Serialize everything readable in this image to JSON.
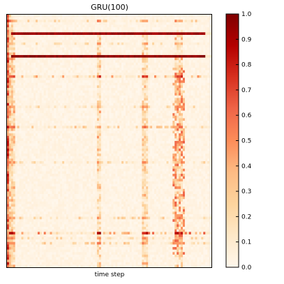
{
  "chart_data": {
    "type": "heatmap",
    "title": "GRU(100)",
    "xlabel": "time step",
    "ylabel": "",
    "rows": 100,
    "cols": 100,
    "x_ticks_shown": false,
    "y_ticks_shown": false,
    "colormap": "OrRd",
    "color_stops": [
      "#fff7ec",
      "#fee8c8",
      "#fdd49e",
      "#fdbb84",
      "#fc8d59",
      "#ef6548",
      "#d7301f",
      "#b30000",
      "#7f0000"
    ],
    "value_range": [
      0.0,
      1.0
    ],
    "colorbar_ticks": [
      "0.0",
      "0.1",
      "0.2",
      "0.3",
      "0.4",
      "0.5",
      "0.6",
      "0.7",
      "0.8",
      "0.9",
      "1.0"
    ],
    "strong_rows": [
      {
        "row": 7,
        "value": 0.97
      },
      {
        "row": 16,
        "value": 1.0
      }
    ],
    "moderate_rows": [
      {
        "row": 2,
        "value": 0.35
      },
      {
        "row": 11,
        "value": 0.25
      },
      {
        "row": 24,
        "value": 0.55
      },
      {
        "row": 36,
        "value": 0.28
      },
      {
        "row": 44,
        "value": 0.38
      },
      {
        "row": 58,
        "value": 0.28
      },
      {
        "row": 80,
        "value": 0.35
      },
      {
        "row": 86,
        "value": 0.7
      },
      {
        "row": 88,
        "value": 0.3
      },
      {
        "row": 90,
        "value": 0.35
      }
    ],
    "active_columns": [
      1,
      2,
      3,
      44,
      45,
      66,
      67,
      68,
      82,
      83,
      84,
      85
    ],
    "first_column_value": 0.85,
    "background_value": 0.03
  }
}
